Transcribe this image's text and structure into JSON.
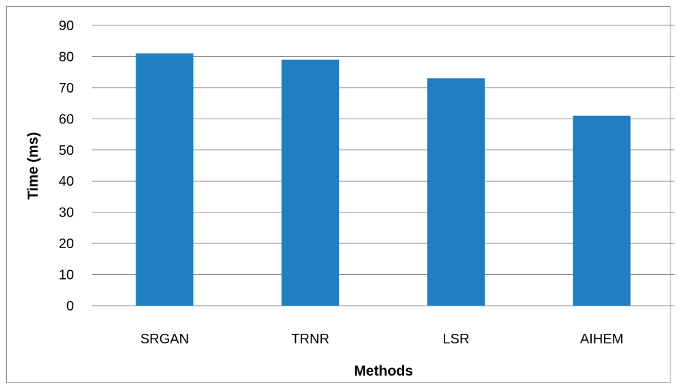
{
  "chart_data": {
    "type": "bar",
    "title": "",
    "xlabel": "Methods",
    "ylabel": "Time (ms)",
    "categories": [
      "SRGAN",
      "TRNR",
      "LSR",
      "AIHEM"
    ],
    "values": [
      81,
      79,
      73,
      61
    ],
    "ylim": [
      0,
      90
    ],
    "yticks": [
      0,
      10,
      20,
      30,
      40,
      50,
      60,
      70,
      80,
      90
    ],
    "grid": true,
    "bar_color": "#1f7fc1",
    "grid_color": "#8c8c8c"
  }
}
